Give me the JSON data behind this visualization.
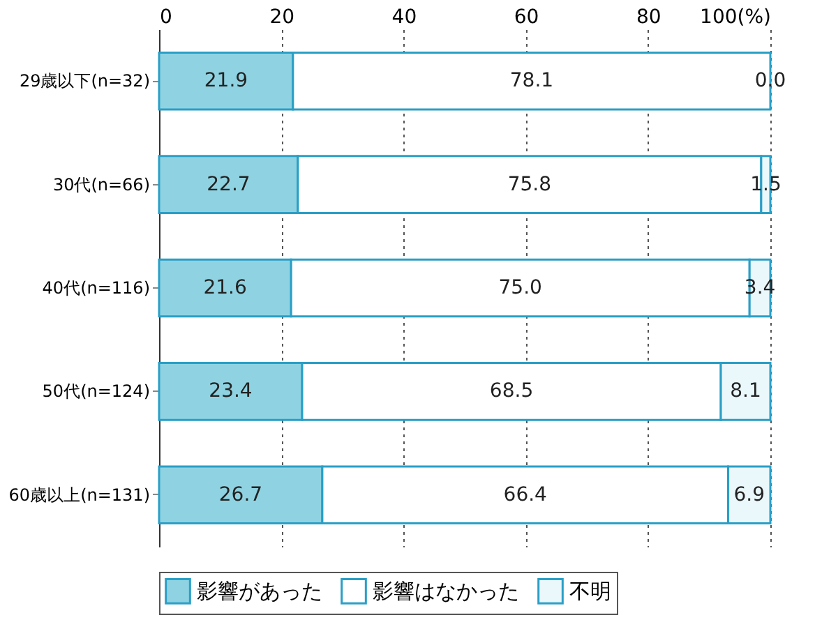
{
  "chart_data": {
    "type": "bar",
    "orientation": "horizontal",
    "stacked": true,
    "categories": [
      "29歳以下(n=32)",
      "30代(n=66)",
      "40代(n=116)",
      "50代(n=124)",
      "60歳以上(n=131)"
    ],
    "series": [
      {
        "name": "影響があった",
        "color": "#8fd3e2",
        "values": [
          21.9,
          22.7,
          21.6,
          23.4,
          26.7
        ]
      },
      {
        "name": "影響はなかった",
        "color": "#ffffff",
        "values": [
          78.1,
          75.8,
          75.0,
          68.5,
          66.4
        ],
        "value_labels": [
          "78.1",
          "75.8",
          "75.0",
          "68.5",
          "66.4"
        ]
      },
      {
        "name": "不明",
        "color": "#eaf7fb",
        "values": [
          0.0,
          1.5,
          3.4,
          8.1,
          6.9
        ],
        "value_labels": [
          "0.0",
          "1.5",
          "3.4",
          "8.1",
          "6.9"
        ]
      }
    ],
    "xlim": [
      0,
      100
    ],
    "xticks": [
      0,
      20,
      40,
      60,
      80,
      {
        "value": 100,
        "label": "100(%)"
      }
    ],
    "grid": "x",
    "legend": "bottom",
    "data_labels": true
  }
}
